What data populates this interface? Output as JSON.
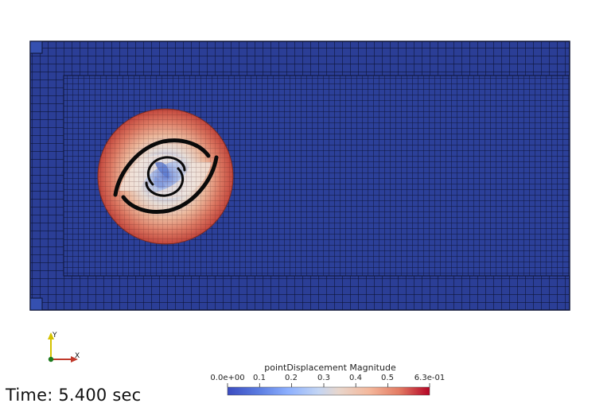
{
  "time_annotation": "Time: 5.400 sec",
  "colorbar": {
    "title": "pointDisplacement Magnitude",
    "tick_labels": [
      "0.0e+00",
      "0.1",
      "0.2",
      "0.3",
      "0.4",
      "0.5",
      "6.3e-01"
    ],
    "tick_values": [
      0.0,
      0.1,
      0.2,
      0.3,
      0.4,
      0.5,
      0.63
    ],
    "range": [
      0.0,
      0.63
    ],
    "colormap": "Cool to Warm",
    "colors": {
      "low": "#3b4cc0",
      "mid": "#dddddd",
      "high": "#b40426"
    }
  },
  "axes_triad": {
    "y_label": "Y",
    "x_label": "X",
    "colors": {
      "y": "#d4c200",
      "x": "#c0392b",
      "z": "#1e7a1e"
    }
  },
  "mesh": {
    "background_color": "#283b8f",
    "grid_line_color": "#0c1233",
    "rotor_blades": 2
  }
}
